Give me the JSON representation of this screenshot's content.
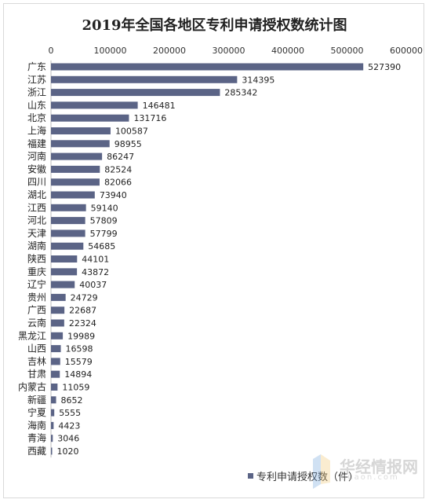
{
  "chart_data": {
    "type": "bar",
    "orientation": "horizontal",
    "title": "2019年全国各地区专利申请授权数统计图",
    "xlim": [
      0,
      600000
    ],
    "xticks": [
      "0",
      "100000",
      "200000",
      "300000",
      "400000",
      "500000",
      "600000"
    ],
    "categories": [
      "广东",
      "江苏",
      "浙江",
      "山东",
      "北京",
      "上海",
      "福建",
      "河南",
      "安徽",
      "四川",
      "湖北",
      "江西",
      "河北",
      "天津",
      "湖南",
      "陕西",
      "重庆",
      "辽宁",
      "贵州",
      "广西",
      "云南",
      "黑龙江",
      "山西",
      "吉林",
      "甘肃",
      "内蒙古",
      "新疆",
      "宁夏",
      "海南",
      "青海",
      "西藏"
    ],
    "series": [
      {
        "name": "专利申请授权数（件）",
        "values": [
          527390,
          314395,
          285342,
          146481,
          131716,
          100587,
          98955,
          86247,
          82524,
          82066,
          73940,
          59140,
          57809,
          57799,
          54685,
          44101,
          43872,
          40037,
          24729,
          22687,
          22324,
          19989,
          16598,
          15579,
          14894,
          11059,
          8652,
          5555,
          4423,
          3046,
          1020
        ]
      }
    ],
    "grid": false,
    "legend_position": "bottom-right",
    "bar_color": "#5b6486"
  },
  "watermark": {
    "text": "华经情报网",
    "sub": "huaon.com"
  }
}
